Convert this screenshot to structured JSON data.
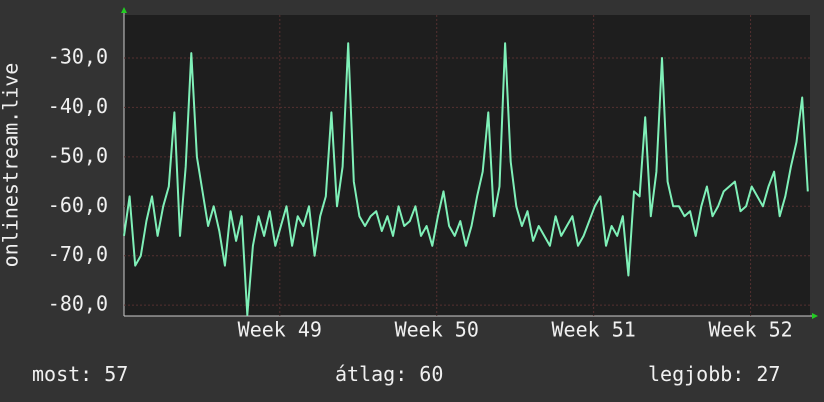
{
  "chart_data": {
    "type": "line",
    "ylabel": "onlinestream.live",
    "x": [
      0,
      0.25,
      0.5,
      0.75,
      1,
      1.25,
      1.5,
      1.75,
      2,
      2.25,
      2.5,
      2.75,
      3,
      3.25,
      3.5,
      3.75,
      4,
      4.25,
      4.5,
      4.75,
      5,
      5.25,
      5.5,
      5.75,
      6,
      6.25,
      6.5,
      6.75,
      7,
      7.25,
      7.5,
      7.75,
      8,
      8.25,
      8.5,
      8.75,
      9,
      9.25,
      9.5,
      9.75,
      10,
      10.25,
      10.5,
      10.75,
      11,
      11.25,
      11.5,
      11.75,
      12,
      12.25,
      12.5,
      12.75,
      13,
      13.25,
      13.5,
      13.75,
      14,
      14.25,
      14.5,
      14.75,
      15,
      15.25,
      15.5,
      15.75,
      16,
      16.25,
      16.5,
      16.75,
      17,
      17.25,
      17.5,
      17.75,
      18,
      18.25,
      18.5,
      18.75,
      19,
      19.25,
      19.5,
      19.75,
      20,
      20.25,
      20.5,
      20.75,
      21,
      21.25,
      21.5,
      21.75,
      22,
      22.25,
      22.5,
      22.75,
      23,
      23.25,
      23.5,
      23.75,
      24,
      24.25,
      24.5,
      24.75,
      25,
      25.25,
      25.5,
      25.75,
      26,
      26.25,
      26.5,
      26.75,
      27,
      27.25,
      27.5,
      27.75,
      28,
      28.25,
      28.5,
      28.75,
      29,
      29.25,
      29.5,
      29.75,
      30,
      30.25,
      30.5
    ],
    "series": [
      {
        "name": "onlinestream.live",
        "color": "#7ff0b8",
        "values": [
          -66,
          -58,
          -72,
          -70,
          -63,
          -58,
          -66,
          -60,
          -56,
          -41,
          -66,
          -52,
          -29,
          -50,
          -57,
          -64,
          -60,
          -65,
          -72,
          -61,
          -67,
          -62,
          -82,
          -68,
          -62,
          -66,
          -61,
          -68,
          -64,
          -60,
          -68,
          -62,
          -64,
          -60,
          -70,
          -62,
          -58,
          -41,
          -60,
          -52,
          -27,
          -55,
          -62,
          -64,
          -62,
          -61,
          -65,
          -62,
          -66,
          -60,
          -64,
          -63,
          -60,
          -66,
          -64,
          -68,
          -62,
          -57,
          -64,
          -66,
          -63,
          -68,
          -64,
          -58,
          -53,
          -41,
          -62,
          -56,
          -27,
          -51,
          -60,
          -64,
          -61,
          -67,
          -64,
          -66,
          -68,
          -62,
          -66,
          -64,
          -62,
          -68,
          -66,
          -63,
          -60,
          -58,
          -68,
          -64,
          -66,
          -62,
          -74,
          -57,
          -58,
          -42,
          -62,
          -53,
          -30,
          -55,
          -60,
          -60,
          -62,
          -61,
          -66,
          -60,
          -56,
          -62,
          -60,
          -57,
          -56,
          -55,
          -61,
          -60,
          -56,
          -58,
          -60,
          -56,
          -53,
          -62,
          -58,
          -52,
          -47,
          -38,
          -57
        ]
      }
    ],
    "xlim": [
      0,
      30.6
    ],
    "xticks": [
      {
        "value": 6.95,
        "label": "Week 49"
      },
      {
        "value": 13.95,
        "label": "Week 50"
      },
      {
        "value": 20.95,
        "label": "Week 51"
      },
      {
        "value": 27.95,
        "label": "Week 52"
      }
    ],
    "ylim": [
      -82.2,
      -21.3
    ],
    "yticks": [
      {
        "value": -80,
        "label": "-80,0"
      },
      {
        "value": -70,
        "label": "-70,0"
      },
      {
        "value": -60,
        "label": "-60,0"
      },
      {
        "value": -50,
        "label": "-50,0"
      },
      {
        "value": -40,
        "label": "-40,0"
      },
      {
        "value": -30,
        "label": "-30,0"
      }
    ],
    "grid": true,
    "stats": [
      {
        "label": "most:",
        "value": 57
      },
      {
        "label": "átlag:",
        "value": 60
      },
      {
        "label": "legjobb:",
        "value": 27
      }
    ]
  }
}
